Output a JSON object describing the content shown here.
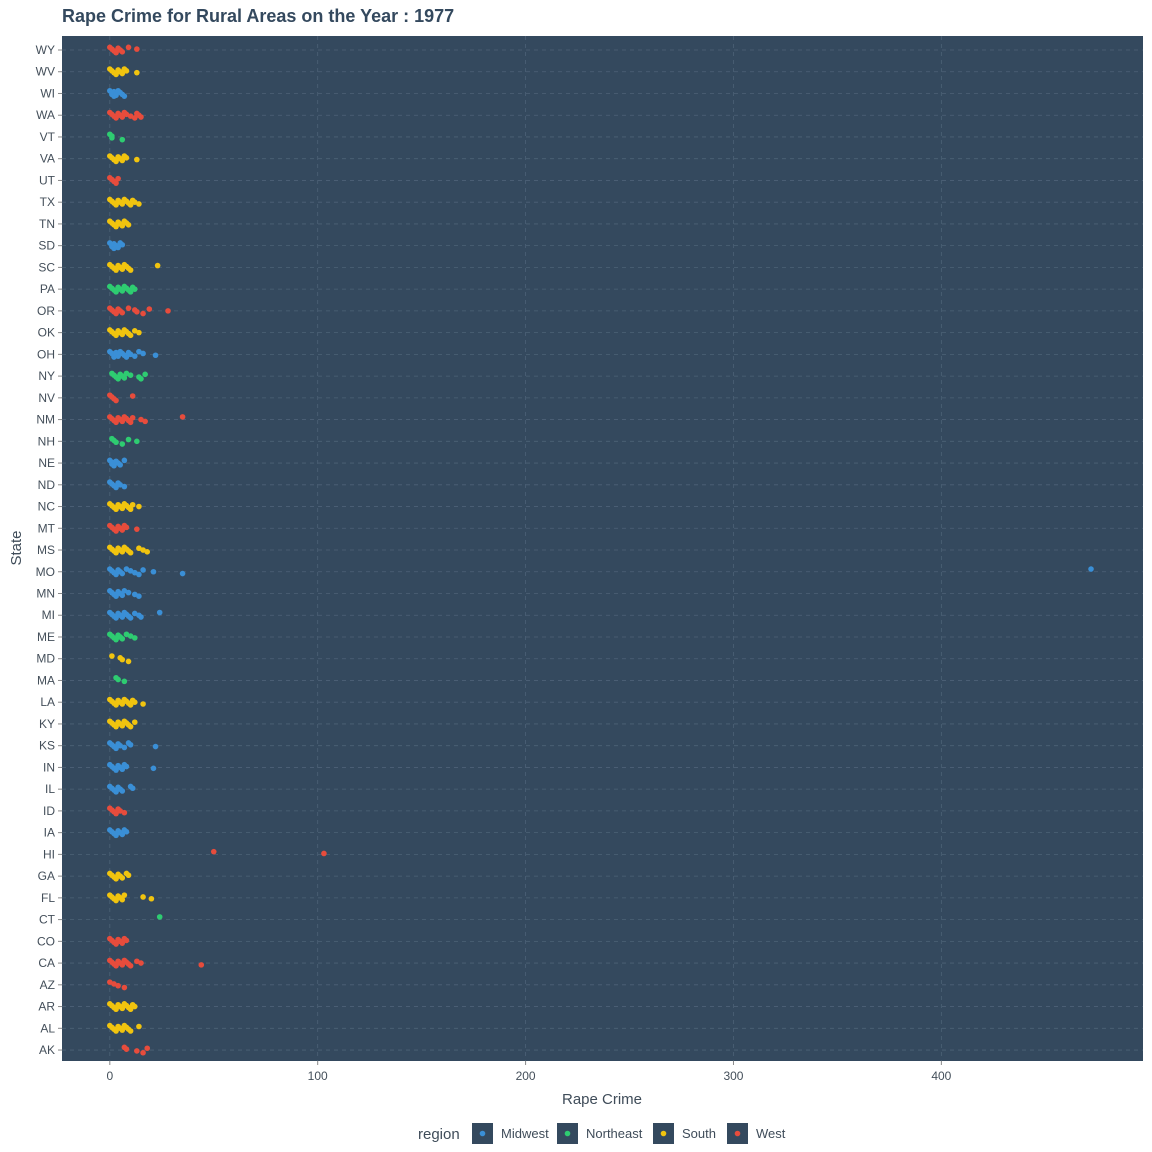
{
  "colors": {
    "panel": "#34495e",
    "grid": "#4d6277",
    "Midwest": "#3a8fd6",
    "Northeast": "#2ecc71",
    "South": "#f1c40f",
    "West": "#e74c3c"
  },
  "chart_data": {
    "type": "scatter",
    "title": "Rape Crime for Rural Areas on the Year : 1977",
    "xlabel": "Rape Crime",
    "ylabel": "State",
    "xlim": [
      -23,
      497
    ],
    "x_ticks": [
      0,
      100,
      200,
      300,
      400
    ],
    "x_tick_labels": [
      "0",
      "100",
      "200",
      "300",
      "400"
    ],
    "grid": true,
    "legend": {
      "title": "region",
      "placement": "bottom",
      "entries": [
        "Midwest",
        "Northeast",
        "South",
        "West"
      ]
    },
    "states": [
      "WY",
      "WV",
      "WI",
      "WA",
      "VT",
      "VA",
      "UT",
      "TX",
      "TN",
      "SD",
      "SC",
      "PA",
      "OR",
      "OK",
      "OH",
      "NY",
      "NV",
      "NM",
      "NH",
      "NE",
      "ND",
      "NC",
      "MT",
      "MS",
      "MO",
      "MN",
      "MI",
      "ME",
      "MD",
      "MA",
      "LA",
      "KY",
      "KS",
      "IN",
      "IL",
      "ID",
      "IA",
      "HI",
      "GA",
      "FL",
      "CT",
      "CO",
      "CA",
      "AZ",
      "AR",
      "AL",
      "AK"
    ],
    "series": [
      {
        "name": "Midwest",
        "points": [
          {
            "state": "WI",
            "x": [
              0,
              1,
              1,
              2,
              2,
              3,
              3,
              4,
              5,
              6,
              7
            ]
          },
          {
            "state": "SD",
            "x": [
              0,
              1,
              1,
              2,
              2,
              3,
              4,
              5,
              6
            ]
          },
          {
            "state": "OH",
            "x": [
              0,
              1,
              2,
              2,
              3,
              3,
              4,
              5,
              6,
              7,
              8,
              9,
              10,
              12,
              14,
              16,
              22
            ]
          },
          {
            "state": "NE",
            "x": [
              0,
              1,
              1,
              2,
              3,
              4,
              5,
              7
            ]
          },
          {
            "state": "ND",
            "x": [
              0,
              1,
              2,
              3,
              4,
              5,
              7
            ]
          },
          {
            "state": "MO",
            "x": [
              0,
              1,
              2,
              3,
              4,
              5,
              6,
              8,
              10,
              12,
              14,
              16,
              21,
              35,
              472
            ]
          },
          {
            "state": "MN",
            "x": [
              0,
              1,
              2,
              3,
              4,
              5,
              6,
              7,
              9,
              12,
              14
            ]
          },
          {
            "state": "MI",
            "x": [
              0,
              1,
              2,
              3,
              4,
              5,
              6,
              7,
              8,
              9,
              10,
              12,
              14,
              15,
              24
            ]
          },
          {
            "state": "KS",
            "x": [
              0,
              1,
              2,
              3,
              4,
              5,
              7,
              9,
              10,
              22
            ]
          },
          {
            "state": "IN",
            "x": [
              0,
              1,
              2,
              3,
              4,
              5,
              6,
              7,
              8,
              21
            ]
          },
          {
            "state": "IL",
            "x": [
              0,
              1,
              2,
              3,
              4,
              5,
              6,
              10,
              11
            ]
          },
          {
            "state": "IA",
            "x": [
              0,
              1,
              2,
              3,
              4,
              5,
              6,
              7,
              8
            ]
          }
        ]
      },
      {
        "name": "Northeast",
        "points": [
          {
            "state": "VT",
            "x": [
              0,
              1,
              1,
              6
            ]
          },
          {
            "state": "PA",
            "x": [
              0,
              1,
              2,
              3,
              4,
              5,
              6,
              7,
              8,
              9,
              10,
              11,
              12
            ]
          },
          {
            "state": "NY",
            "x": [
              1,
              2,
              3,
              4,
              5,
              6,
              7,
              8,
              10,
              14,
              15,
              17
            ]
          },
          {
            "state": "NH",
            "x": [
              1,
              2,
              3,
              6,
              9,
              13
            ]
          },
          {
            "state": "ME",
            "x": [
              0,
              1,
              2,
              3,
              4,
              5,
              6,
              8,
              10,
              12
            ]
          },
          {
            "state": "MA",
            "x": [
              3,
              4,
              7
            ]
          },
          {
            "state": "CT",
            "x": [
              24
            ]
          }
        ]
      },
      {
        "name": "South",
        "points": [
          {
            "state": "WV",
            "x": [
              0,
              1,
              2,
              3,
              4,
              5,
              6,
              7,
              8,
              13
            ]
          },
          {
            "state": "VA",
            "x": [
              0,
              1,
              2,
              3,
              4,
              5,
              6,
              7,
              8,
              13
            ]
          },
          {
            "state": "TX",
            "x": [
              0,
              1,
              2,
              3,
              4,
              5,
              6,
              7,
              8,
              9,
              10,
              11,
              12,
              14
            ]
          },
          {
            "state": "TN",
            "x": [
              0,
              1,
              2,
              3,
              4,
              5,
              6,
              7,
              8,
              9
            ]
          },
          {
            "state": "SC",
            "x": [
              0,
              1,
              2,
              3,
              4,
              5,
              6,
              7,
              8,
              9,
              10,
              23
            ]
          },
          {
            "state": "OK",
            "x": [
              0,
              1,
              2,
              3,
              4,
              5,
              6,
              7,
              8,
              9,
              10,
              12,
              14
            ]
          },
          {
            "state": "NC",
            "x": [
              0,
              1,
              2,
              3,
              4,
              5,
              6,
              7,
              8,
              9,
              10,
              11,
              14
            ]
          },
          {
            "state": "MS",
            "x": [
              0,
              1,
              2,
              3,
              4,
              5,
              6,
              7,
              8,
              9,
              10,
              14,
              16,
              18
            ]
          },
          {
            "state": "MD",
            "x": [
              1,
              5,
              6,
              9
            ]
          },
          {
            "state": "LA",
            "x": [
              0,
              1,
              2,
              3,
              4,
              5,
              6,
              7,
              8,
              9,
              10,
              11,
              12,
              16
            ]
          },
          {
            "state": "KY",
            "x": [
              0,
              1,
              2,
              3,
              4,
              5,
              6,
              7,
              8,
              9,
              10,
              12
            ]
          },
          {
            "state": "GA",
            "x": [
              0,
              1,
              2,
              3,
              4,
              5,
              6,
              8,
              9
            ]
          },
          {
            "state": "FL",
            "x": [
              0,
              1,
              2,
              3,
              4,
              5,
              6,
              7,
              16,
              20
            ]
          },
          {
            "state": "AR",
            "x": [
              0,
              1,
              2,
              3,
              4,
              5,
              6,
              7,
              8,
              9,
              10,
              11,
              12
            ]
          },
          {
            "state": "AL",
            "x": [
              0,
              1,
              2,
              3,
              4,
              5,
              6,
              7,
              8,
              9,
              10,
              14
            ]
          }
        ]
      },
      {
        "name": "West",
        "points": [
          {
            "state": "WY",
            "x": [
              0,
              1,
              2,
              3,
              4,
              5,
              6,
              9,
              13
            ]
          },
          {
            "state": "WA",
            "x": [
              0,
              1,
              2,
              3,
              4,
              5,
              6,
              7,
              8,
              10,
              12,
              13,
              14,
              15
            ]
          },
          {
            "state": "UT",
            "x": [
              0,
              1,
              2,
              3,
              4
            ]
          },
          {
            "state": "OR",
            "x": [
              0,
              1,
              2,
              3,
              4,
              5,
              6,
              9,
              12,
              13,
              16,
              19,
              28
            ]
          },
          {
            "state": "NV",
            "x": [
              0,
              1,
              2,
              3,
              11
            ]
          },
          {
            "state": "NM",
            "x": [
              0,
              1,
              2,
              3,
              4,
              5,
              6,
              7,
              8,
              9,
              10,
              11,
              15,
              17,
              35
            ]
          },
          {
            "state": "MT",
            "x": [
              0,
              1,
              2,
              3,
              4,
              5,
              6,
              7,
              8,
              13
            ]
          },
          {
            "state": "ID",
            "x": [
              0,
              1,
              2,
              3,
              4,
              5,
              7
            ]
          },
          {
            "state": "HI",
            "x": [
              50,
              103
            ]
          },
          {
            "state": "CO",
            "x": [
              0,
              1,
              2,
              3,
              4,
              5,
              6,
              7,
              8
            ]
          },
          {
            "state": "CA",
            "x": [
              0,
              1,
              2,
              3,
              4,
              5,
              6,
              7,
              8,
              9,
              10,
              13,
              15,
              44
            ]
          },
          {
            "state": "AZ",
            "x": [
              0,
              2,
              4,
              7
            ]
          },
          {
            "state": "AK",
            "x": [
              7,
              8,
              13,
              16,
              18
            ]
          }
        ]
      }
    ]
  }
}
